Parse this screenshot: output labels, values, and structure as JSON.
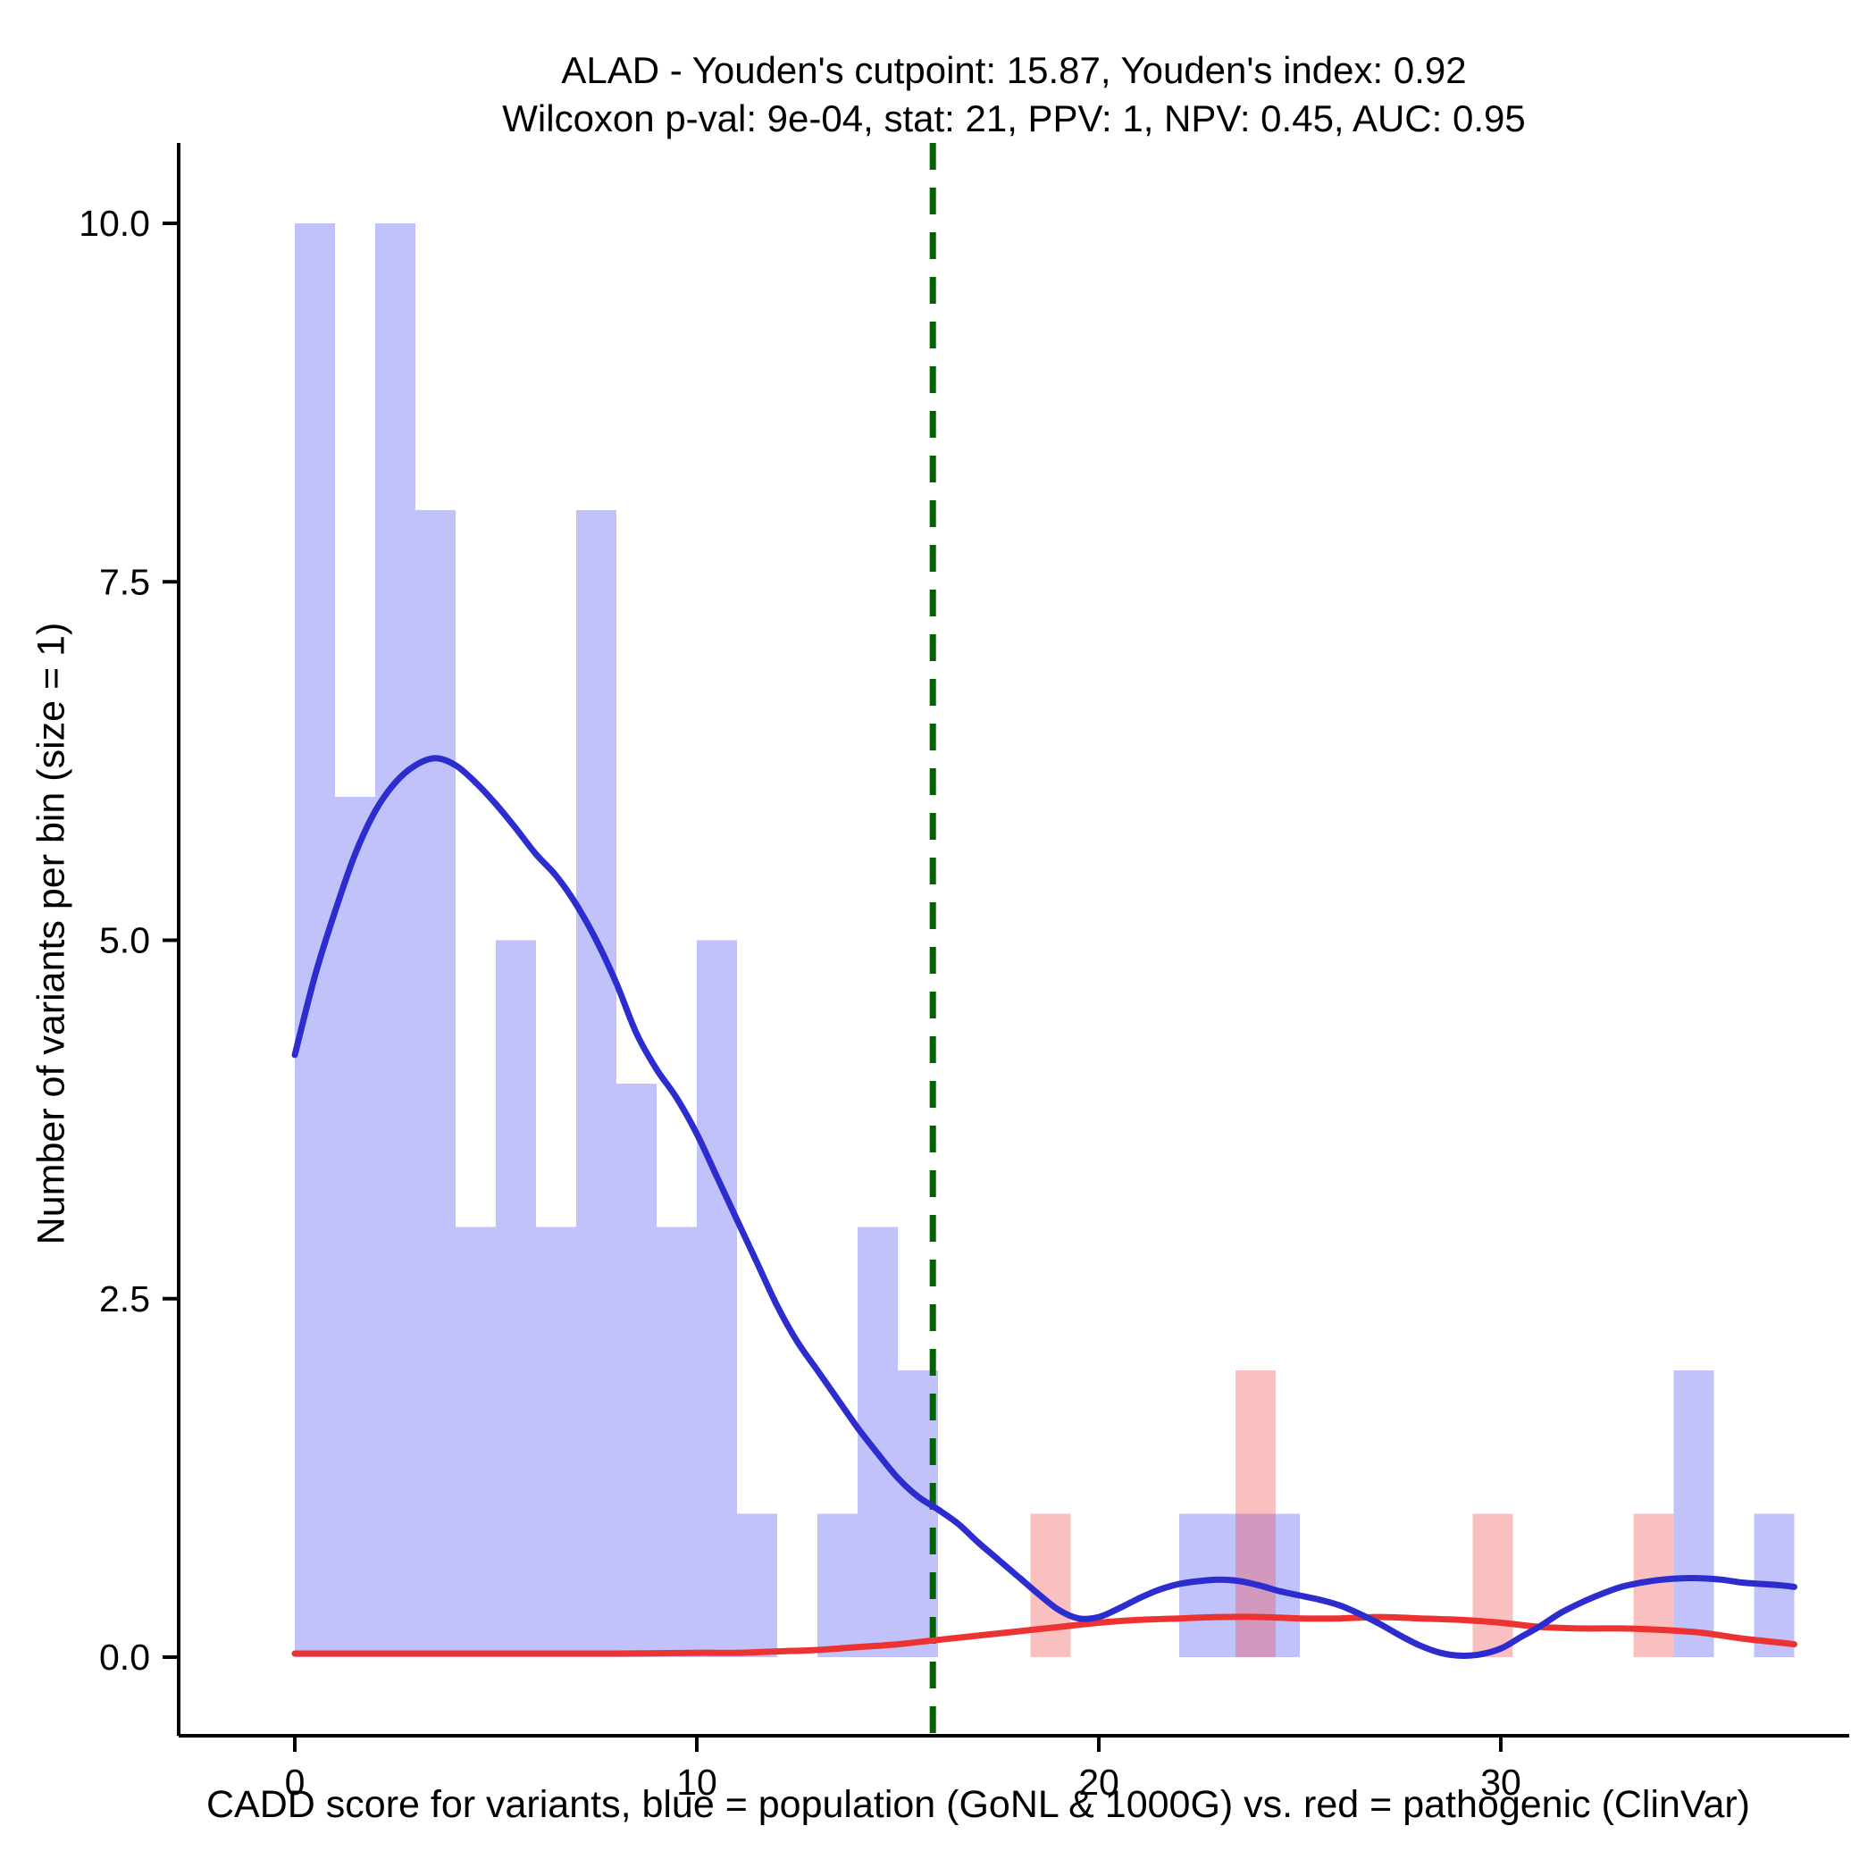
{
  "title": {
    "line1": "ALAD - Youden's cutpoint: 15.87, Youden's index: 0.92",
    "line2": "Wilcoxon p-val: 9e-04, stat: 21, PPV: 1, NPV: 0.45, AUC: 0.95"
  },
  "stats": {
    "gene": "ALAD",
    "youden_cutpoint": 15.87,
    "youden_index": 0.92,
    "wilcoxon_p_val": "9e-04",
    "stat": 21,
    "PPV": 1,
    "NPV": 0.45,
    "AUC": 0.95
  },
  "chart_data": {
    "type": "bar",
    "subtype": "histogram_with_density_curves",
    "title": "ALAD - Youden's cutpoint: 15.87, Youden's index: 0.92",
    "subtitle": "Wilcoxon p-val: 9e-04, stat: 21, PPV: 1, NPV: 0.45, AUC: 0.95",
    "xlabel": "CADD score for variants, blue = population (GoNL & 1000G) vs. red = pathogenic (ClinVar)",
    "ylabel": "Number of variants per bin (size = 1)",
    "xlim": [
      -2.9,
      38.5
    ],
    "ylim": [
      -0.56,
      10.55
    ],
    "x_tick_values": [
      0,
      10,
      20,
      30
    ],
    "x_tick_labels": [
      "0",
      "10",
      "20",
      "30"
    ],
    "y_tick_values": [
      0,
      2.5,
      5,
      7.5,
      10
    ],
    "y_tick_labels": [
      "0.0",
      "2.5",
      "5.0",
      "7.5",
      "10.0"
    ],
    "grid": false,
    "legend": "none",
    "binwidth": 1,
    "vline": {
      "x": 15.87,
      "color": "#006400",
      "style": "dashed",
      "label": "Youden's cutpoint"
    },
    "colors": {
      "population_fill": "rgba(80,80,240,0.35)",
      "pathogenic_fill": "rgba(242,75,75,0.35)",
      "population_line": "#2d2dcf",
      "pathogenic_line": "#ed3232",
      "axis": "#000000"
    },
    "series": [
      {
        "name": "population (GoNL & 1000G)",
        "role": "population",
        "fill": "rgba(80,80,240,0.35)",
        "line_color": "#2d2dcf",
        "bins": [
          [
            0,
            10
          ],
          [
            1,
            6
          ],
          [
            2,
            10
          ],
          [
            3,
            8
          ],
          [
            4,
            3
          ],
          [
            5,
            5
          ],
          [
            6,
            3
          ],
          [
            7,
            8
          ],
          [
            8,
            4
          ],
          [
            9,
            3
          ],
          [
            10,
            5
          ],
          [
            11,
            1
          ],
          [
            13,
            1
          ],
          [
            14,
            3
          ],
          [
            15,
            2
          ],
          [
            22,
            1
          ],
          [
            23,
            1
          ],
          [
            24,
            1
          ],
          [
            34.3,
            2
          ],
          [
            36.3,
            1
          ]
        ],
        "density": [
          [
            0,
            4.2
          ],
          [
            0.5,
            4.75
          ],
          [
            1,
            5.2
          ],
          [
            1.5,
            5.6
          ],
          [
            2,
            5.9
          ],
          [
            2.5,
            6.1
          ],
          [
            3,
            6.22
          ],
          [
            3.5,
            6.27
          ],
          [
            4,
            6.22
          ],
          [
            4.5,
            6.1
          ],
          [
            5,
            5.95
          ],
          [
            5.5,
            5.78
          ],
          [
            6,
            5.6
          ],
          [
            6.5,
            5.45
          ],
          [
            7,
            5.25
          ],
          [
            7.5,
            5.0
          ],
          [
            8,
            4.7
          ],
          [
            8.5,
            4.35
          ],
          [
            9,
            4.1
          ],
          [
            9.5,
            3.9
          ],
          [
            10,
            3.65
          ],
          [
            10.5,
            3.35
          ],
          [
            11,
            3.05
          ],
          [
            11.5,
            2.75
          ],
          [
            12,
            2.45
          ],
          [
            12.5,
            2.2
          ],
          [
            13,
            2.0
          ],
          [
            13.5,
            1.8
          ],
          [
            14,
            1.6
          ],
          [
            14.5,
            1.42
          ],
          [
            15,
            1.25
          ],
          [
            15.5,
            1.12
          ],
          [
            16,
            1.03
          ],
          [
            16.5,
            0.93
          ],
          [
            17,
            0.8
          ],
          [
            17.5,
            0.68
          ],
          [
            18,
            0.56
          ],
          [
            18.5,
            0.44
          ],
          [
            19,
            0.33
          ],
          [
            19.5,
            0.27
          ],
          [
            20,
            0.28
          ],
          [
            20.5,
            0.34
          ],
          [
            21,
            0.41
          ],
          [
            21.5,
            0.47
          ],
          [
            22,
            0.51
          ],
          [
            22.5,
            0.53
          ],
          [
            23,
            0.54
          ],
          [
            23.5,
            0.53
          ],
          [
            24,
            0.5
          ],
          [
            24.5,
            0.46
          ],
          [
            25,
            0.43
          ],
          [
            25.5,
            0.4
          ],
          [
            26,
            0.36
          ],
          [
            26.5,
            0.3
          ],
          [
            27,
            0.23
          ],
          [
            27.5,
            0.15
          ],
          [
            28,
            0.08
          ],
          [
            28.5,
            0.03
          ],
          [
            29,
            0.01
          ],
          [
            29.5,
            0.02
          ],
          [
            30,
            0.06
          ],
          [
            30.5,
            0.14
          ],
          [
            31,
            0.22
          ],
          [
            31.5,
            0.31
          ],
          [
            32,
            0.38
          ],
          [
            32.5,
            0.44
          ],
          [
            33,
            0.49
          ],
          [
            33.5,
            0.52
          ],
          [
            34,
            0.54
          ],
          [
            34.5,
            0.55
          ],
          [
            35,
            0.55
          ],
          [
            35.5,
            0.54
          ],
          [
            36,
            0.52
          ],
          [
            36.5,
            0.51
          ],
          [
            37,
            0.5
          ],
          [
            37.3,
            0.49
          ]
        ]
      },
      {
        "name": "pathogenic (ClinVar)",
        "role": "pathogenic",
        "fill": "rgba(242,75,75,0.35)",
        "line_color": "#ed3232",
        "bins": [
          [
            18.3,
            1
          ],
          [
            23.4,
            2
          ],
          [
            29.3,
            1
          ],
          [
            33.3,
            1
          ]
        ],
        "density": [
          [
            0,
            0.025
          ],
          [
            2,
            0.025
          ],
          [
            4,
            0.025
          ],
          [
            6,
            0.025
          ],
          [
            8,
            0.025
          ],
          [
            10,
            0.03
          ],
          [
            11,
            0.03
          ],
          [
            12,
            0.04
          ],
          [
            13,
            0.05
          ],
          [
            14,
            0.07
          ],
          [
            15,
            0.09
          ],
          [
            16,
            0.12
          ],
          [
            17,
            0.15
          ],
          [
            18,
            0.18
          ],
          [
            19,
            0.21
          ],
          [
            20,
            0.24
          ],
          [
            21,
            0.26
          ],
          [
            22,
            0.27
          ],
          [
            23,
            0.28
          ],
          [
            24,
            0.28
          ],
          [
            25,
            0.27
          ],
          [
            26,
            0.27
          ],
          [
            27,
            0.28
          ],
          [
            28,
            0.27
          ],
          [
            29,
            0.26
          ],
          [
            30,
            0.24
          ],
          [
            31,
            0.21
          ],
          [
            32,
            0.2
          ],
          [
            33,
            0.2
          ],
          [
            34,
            0.19
          ],
          [
            35,
            0.17
          ],
          [
            36,
            0.13
          ],
          [
            37,
            0.1
          ],
          [
            37.3,
            0.09
          ]
        ]
      }
    ]
  }
}
